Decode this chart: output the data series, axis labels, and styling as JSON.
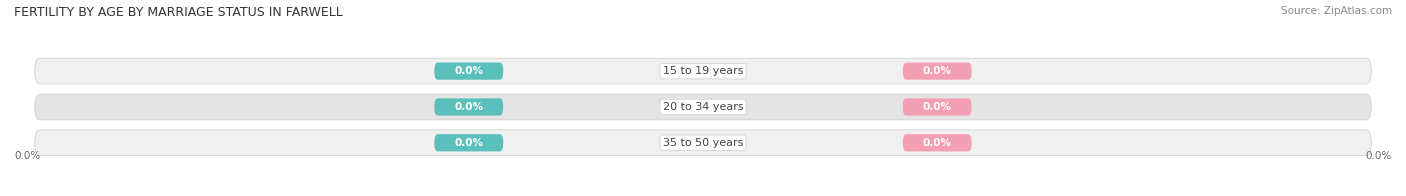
{
  "title": "FERTILITY BY AGE BY MARRIAGE STATUS IN FARWELL",
  "source": "Source: ZipAtlas.com",
  "age_groups": [
    "15 to 19 years",
    "20 to 34 years",
    "35 to 50 years"
  ],
  "married_values": [
    0.0,
    0.0,
    0.0
  ],
  "unmarried_values": [
    0.0,
    0.0,
    0.0
  ],
  "married_color": "#5bbfbb",
  "unmarried_color": "#f4a0b4",
  "bar_bg_light": "#f0f0f0",
  "bar_bg_dark": "#e4e4e4",
  "row_separator_color": "#d8d8d8",
  "title_fontsize": 9,
  "source_fontsize": 7.5,
  "label_fontsize": 8,
  "value_fontsize": 7.5,
  "legend_fontsize": 8.5,
  "x_left_label": "0.0%",
  "x_right_label": "0.0%",
  "figure_width": 14.06,
  "figure_height": 1.96,
  "dpi": 100
}
